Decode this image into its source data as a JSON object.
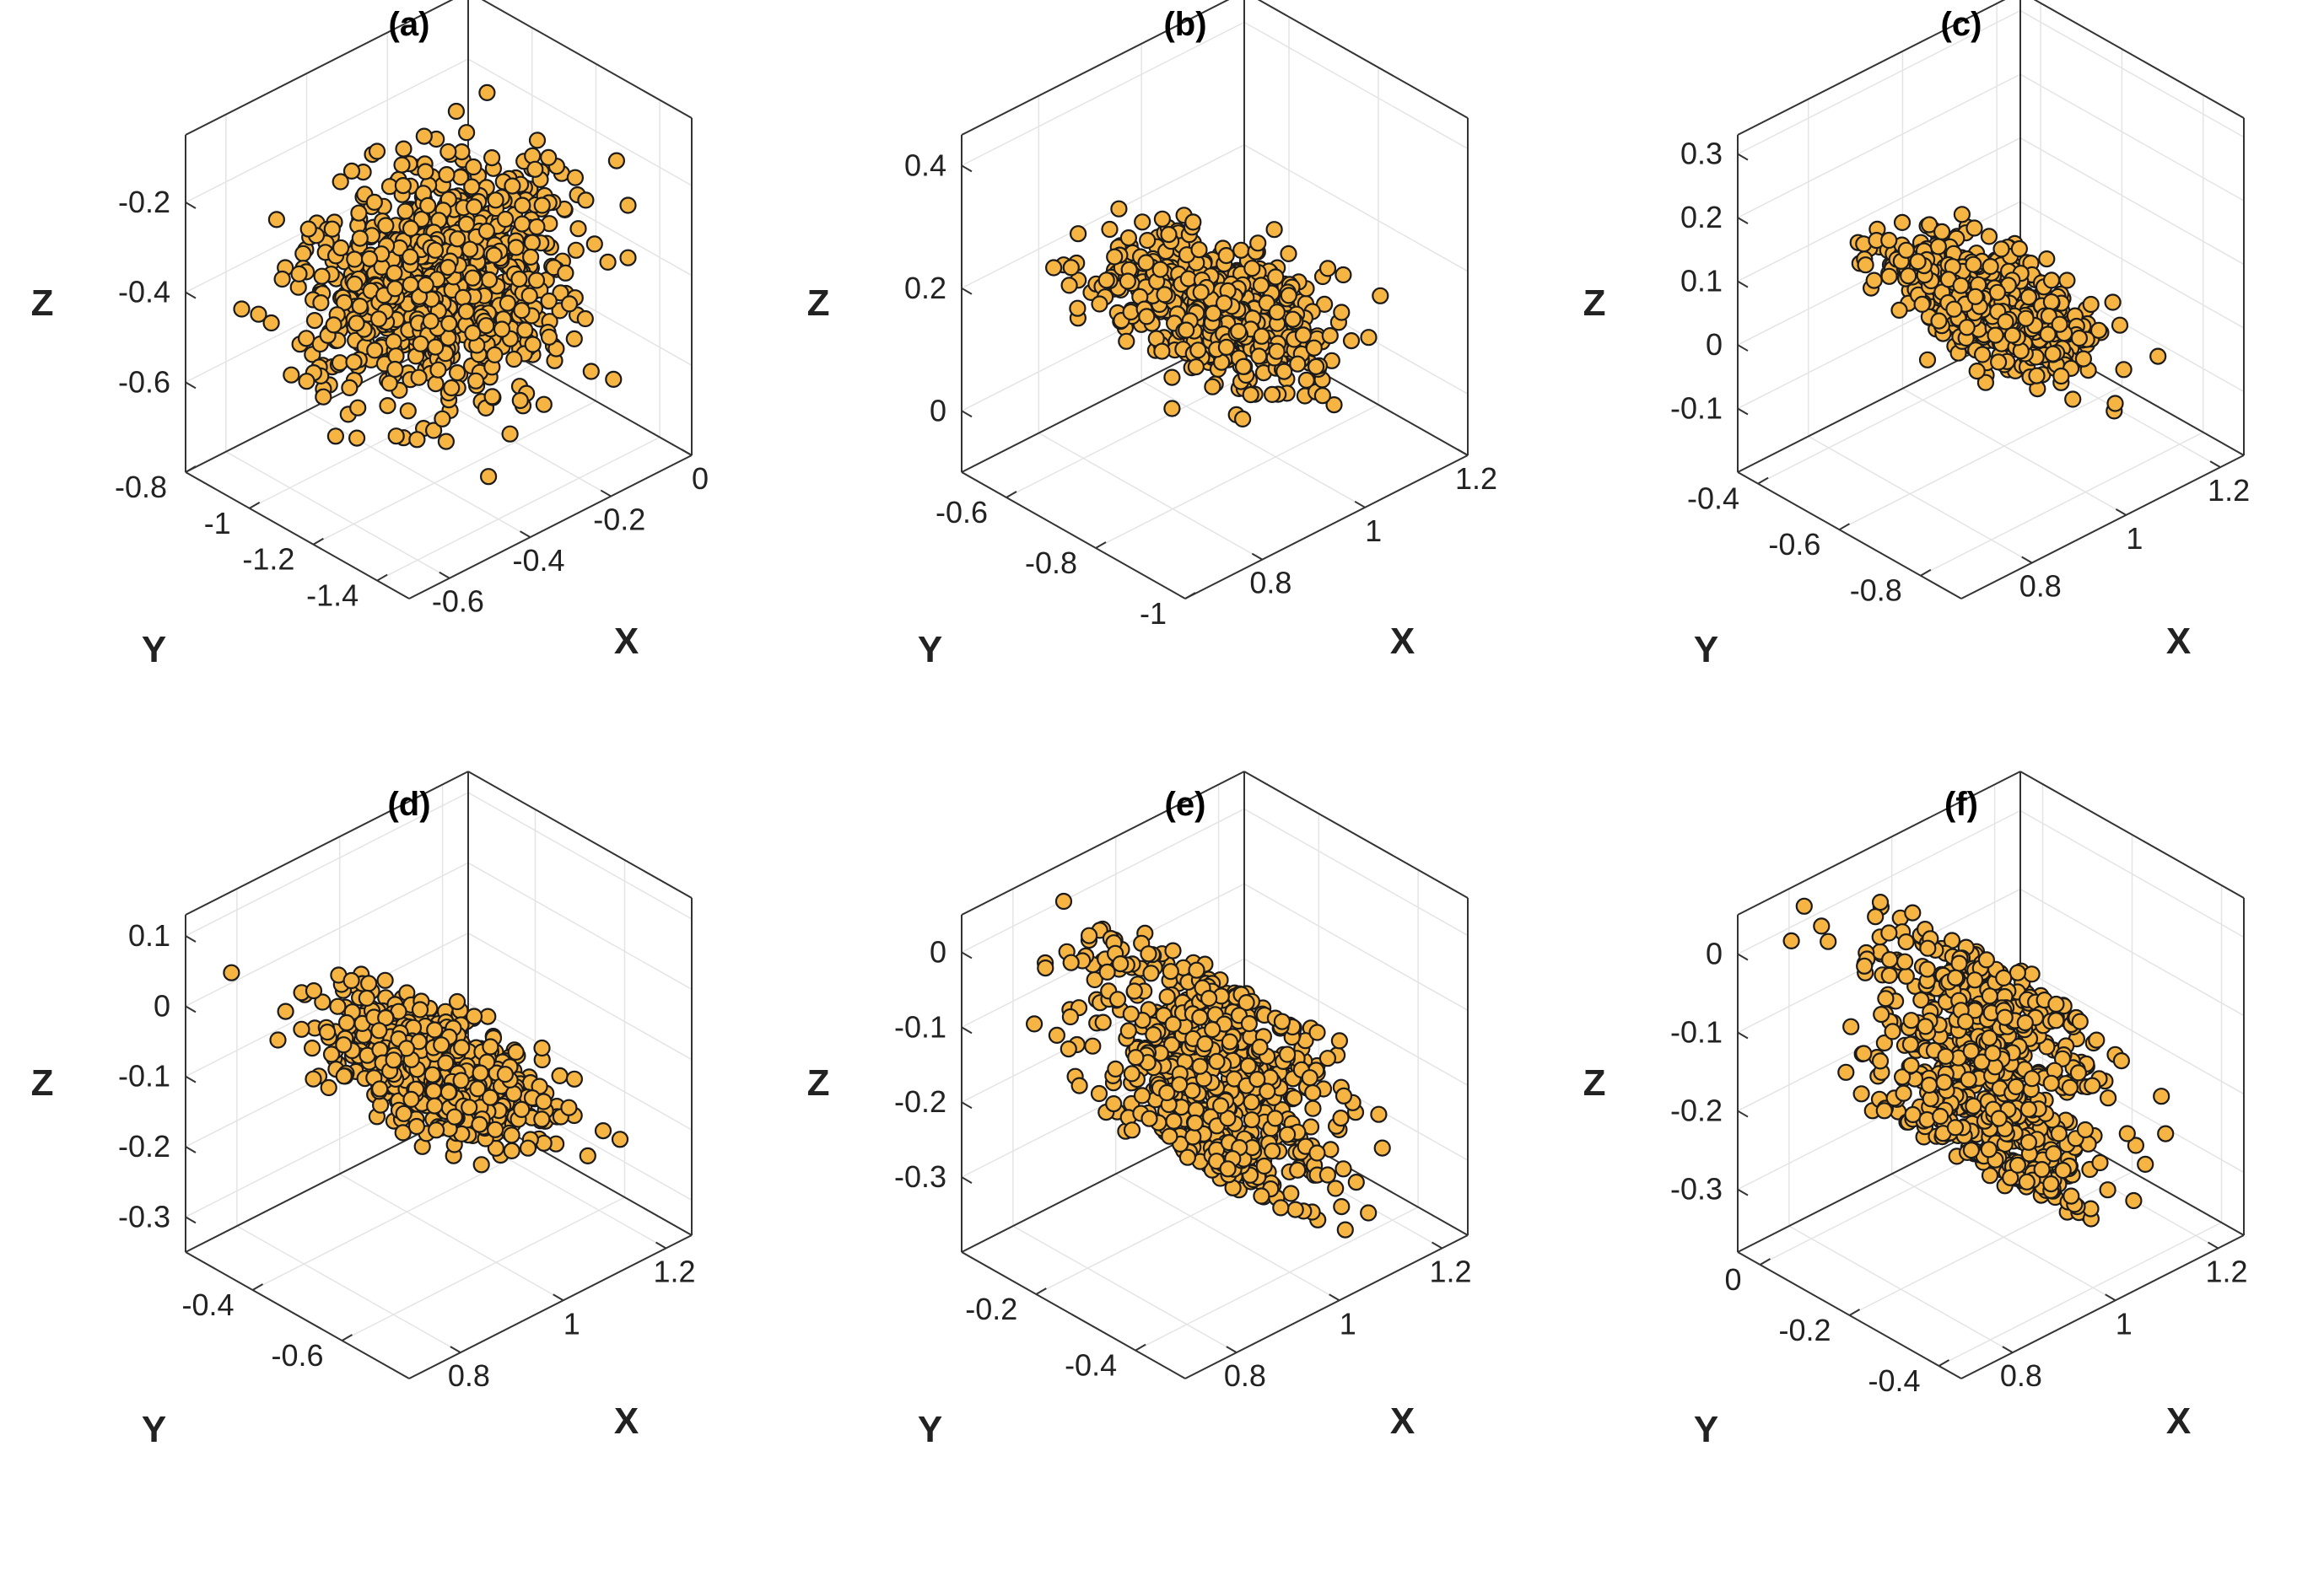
{
  "figure": {
    "marker_face_color": "#f6b443",
    "marker_edge_color": "#1a1a1a",
    "box_color": "#333333",
    "grid_color": "#e4e4e4",
    "background": "#ffffff"
  },
  "chart_data": [
    {
      "type": "scatter",
      "title": "(a)",
      "xlabel": "X",
      "ylabel": "Y",
      "zlabel": "Z",
      "xlim": [
        -0.7,
        0.0
      ],
      "ylim": [
        -1.5,
        -0.8
      ],
      "zlim": [
        -0.8,
        -0.05
      ],
      "xticks": [
        -0.6,
        -0.4,
        -0.2,
        0
      ],
      "xtick_labels": [
        "-0.6",
        "-0.4",
        "-0.2",
        "0"
      ],
      "yticks": [
        -1.4,
        -1.2,
        -1,
        -0.8
      ],
      "ytick_labels": [
        "-1.4",
        "-1.2",
        "-1",
        "-0.8"
      ],
      "zticks": [
        -0.2,
        -0.4,
        -0.6
      ],
      "ztick_labels": [
        "-0.2",
        "-0.4",
        "-0.6"
      ],
      "grid": true,
      "cloud": {
        "center": [
          -0.35,
          -1.15,
          -0.4
        ],
        "spread": [
          0.13,
          0.12,
          0.1
        ],
        "slope": 0.0,
        "layers": 0,
        "count": 900
      }
    },
    {
      "type": "scatter",
      "title": "(b)",
      "xlabel": "X",
      "ylabel": "Y",
      "zlabel": "Z",
      "xlim": [
        0.65,
        1.2
      ],
      "ylim": [
        -1.0,
        -0.5
      ],
      "zlim": [
        -0.1,
        0.45
      ],
      "xticks": [
        0.8,
        1,
        1.2
      ],
      "xtick_labels": [
        "0.8",
        "1",
        "1.2"
      ],
      "yticks": [
        -1,
        -0.8,
        -0.6
      ],
      "ytick_labels": [
        "-1",
        "-0.8",
        "-0.6"
      ],
      "zticks": [
        0.4,
        0.2,
        0
      ],
      "ztick_labels": [
        "0.4",
        "0.2",
        "0"
      ],
      "grid": true,
      "cloud": {
        "center": [
          0.93,
          -0.75,
          0.15
        ],
        "spread": [
          0.08,
          0.07,
          0.05
        ],
        "slope": -0.55,
        "layers": 0,
        "count": 700
      }
    },
    {
      "type": "scatter",
      "title": "(c)",
      "xlabel": "X",
      "ylabel": "Y",
      "zlabel": "Z",
      "xlim": [
        0.65,
        1.25
      ],
      "ylim": [
        -0.9,
        -0.35
      ],
      "zlim": [
        -0.2,
        0.33
      ],
      "xticks": [
        0.8,
        1,
        1.2
      ],
      "xtick_labels": [
        "0.8",
        "1",
        "1.2"
      ],
      "yticks": [
        -0.8,
        -0.6,
        -0.4
      ],
      "ytick_labels": [
        "-0.8",
        "-0.6",
        "-0.4"
      ],
      "zticks": [
        0.3,
        0.2,
        0.1,
        0,
        -0.1
      ],
      "ztick_labels": [
        "0.3",
        "0.2",
        "0.1",
        "0",
        "-0.1"
      ],
      "grid": true,
      "cloud": {
        "center": [
          0.95,
          -0.62,
          0.05
        ],
        "spread": [
          0.08,
          0.07,
          0.04
        ],
        "slope": -0.6,
        "layers": 0,
        "count": 700
      }
    },
    {
      "type": "scatter",
      "title": "(d)",
      "xlabel": "X",
      "ylabel": "Y",
      "zlabel": "Z",
      "xlim": [
        0.7,
        1.25
      ],
      "ylim": [
        -0.75,
        -0.25
      ],
      "zlim": [
        -0.35,
        0.13
      ],
      "xticks": [
        0.8,
        1,
        1.2
      ],
      "xtick_labels": [
        "0.8",
        "1",
        "1.2"
      ],
      "yticks": [
        -0.6,
        -0.4
      ],
      "ytick_labels": [
        "-0.6",
        "-0.4"
      ],
      "zticks": [
        0.1,
        0,
        -0.1,
        -0.2,
        -0.3
      ],
      "ztick_labels": [
        "0.1",
        "0",
        "-0.1",
        "-0.2",
        "-0.3"
      ],
      "grid": true,
      "cloud": {
        "center": [
          0.97,
          -0.5,
          -0.1
        ],
        "spread": [
          0.08,
          0.07,
          0.04
        ],
        "slope": -0.55,
        "layers": 0,
        "count": 750
      }
    },
    {
      "type": "scatter",
      "title": "(e)",
      "xlabel": "X",
      "ylabel": "Y",
      "zlabel": "Z",
      "xlim": [
        0.7,
        1.25
      ],
      "ylim": [
        -0.5,
        -0.05
      ],
      "zlim": [
        -0.4,
        0.05
      ],
      "xticks": [
        0.8,
        1,
        1.2
      ],
      "xtick_labels": [
        "0.8",
        "1",
        "1.2"
      ],
      "yticks": [
        -0.4,
        -0.2
      ],
      "ytick_labels": [
        "-0.4",
        "-0.2"
      ],
      "zticks": [
        0,
        -0.1,
        -0.2,
        -0.3
      ],
      "ztick_labels": [
        "0",
        "-0.1",
        "-0.2",
        "-0.3"
      ],
      "grid": true,
      "cloud": {
        "center": [
          0.97,
          -0.28,
          -0.17
        ],
        "spread": [
          0.09,
          0.07,
          0.012
        ],
        "slope": -0.7,
        "layers": 6,
        "count": 700
      }
    },
    {
      "type": "scatter",
      "title": "(f)",
      "xlabel": "X",
      "ylabel": "Y",
      "zlabel": "Z",
      "xlim": [
        0.7,
        1.25
      ],
      "ylim": [
        -0.45,
        0.05
      ],
      "zlim": [
        -0.38,
        0.05
      ],
      "xticks": [
        0.8,
        1,
        1.2
      ],
      "xtick_labels": [
        "0.8",
        "1",
        "1.2"
      ],
      "yticks": [
        -0.4,
        -0.2,
        0
      ],
      "ytick_labels": [
        "-0.4",
        "-0.2",
        "0"
      ],
      "zticks": [
        0,
        -0.1,
        -0.2,
        -0.3
      ],
      "ztick_labels": [
        "0",
        "-0.1",
        "-0.2",
        "-0.3"
      ],
      "grid": true,
      "cloud": {
        "center": [
          0.97,
          -0.2,
          -0.15
        ],
        "spread": [
          0.09,
          0.07,
          0.012
        ],
        "slope": -0.7,
        "layers": 6,
        "count": 700
      }
    }
  ]
}
